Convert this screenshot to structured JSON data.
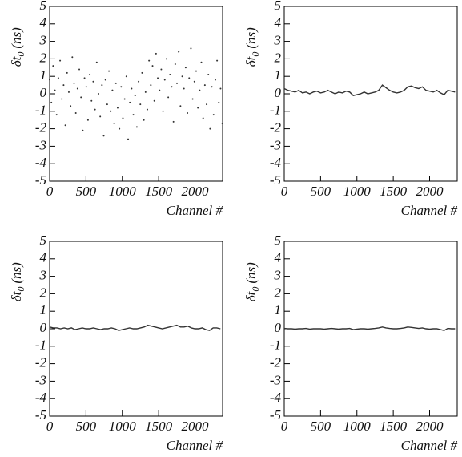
{
  "chart_data": [
    {
      "type": "scatter",
      "xlabel": "Channel #",
      "ylabel": {
        "symbol": "δt",
        "subscript": "0",
        "unit": "(ns)"
      },
      "xlim": [
        0,
        2380
      ],
      "ylim": [
        -5,
        5
      ],
      "xticks": [
        0,
        500,
        1000,
        1500,
        2000
      ],
      "yticks": [
        -5,
        -4,
        -3,
        -2,
        -1,
        0,
        1,
        2,
        3,
        4,
        5
      ],
      "color": "#333333",
      "x": [
        0,
        24,
        48,
        72,
        96,
        120,
        144,
        168,
        192,
        216,
        240,
        264,
        288,
        312,
        336,
        360,
        384,
        408,
        432,
        456,
        480,
        504,
        528,
        552,
        576,
        600,
        624,
        648,
        672,
        696,
        720,
        744,
        768,
        792,
        816,
        840,
        864,
        888,
        912,
        936,
        960,
        984,
        1008,
        1032,
        1056,
        1080,
        1104,
        1128,
        1152,
        1176,
        1200,
        1224,
        1248,
        1272,
        1296,
        1320,
        1344,
        1368,
        1392,
        1416,
        1440,
        1464,
        1488,
        1512,
        1536,
        1560,
        1584,
        1608,
        1632,
        1656,
        1680,
        1704,
        1728,
        1752,
        1776,
        1800,
        1824,
        1848,
        1872,
        1896,
        1920,
        1944,
        1968,
        1992,
        2016,
        2040,
        2064,
        2088,
        2112,
        2136,
        2160,
        2184,
        2208,
        2232,
        2256,
        2280,
        2304,
        2328,
        2352,
        2376
      ],
      "values": [
        0.8,
        -0.5,
        1.6,
        0.2,
        -1.2,
        0.9,
        1.9,
        -0.3,
        0.5,
        -1.8,
        1.2,
        0.1,
        -0.7,
        2.1,
        0.6,
        -1.1,
        0.3,
        1.4,
        -0.2,
        -2.1,
        0.9,
        0.4,
        -1.5,
        1.1,
        -0.4,
        0.7,
        -0.9,
        1.8,
        0.0,
        -1.3,
        0.5,
        -2.4,
        0.8,
        -0.6,
        1.3,
        -1.0,
        0.2,
        -1.7,
        0.6,
        -0.8,
        -2.0,
        0.4,
        -1.4,
        -0.3,
        1.0,
        -2.6,
        -0.5,
        0.3,
        -1.2,
        -0.1,
        -1.9,
        0.7,
        -0.6,
        1.2,
        -1.5,
        0.1,
        -0.9,
        1.9,
        0.5,
        1.6,
        -0.4,
        2.3,
        0.9,
        0.2,
        1.4,
        -1.0,
        0.8,
        2.0,
        -0.2,
        1.1,
        0.4,
        -1.6,
        1.7,
        0.6,
        2.4,
        -0.7,
        1.0,
        0.3,
        1.5,
        -1.1,
        0.9,
        2.6,
        -0.3,
        0.7,
        1.3,
        -0.8,
        0.2,
        1.8,
        -1.4,
        0.5,
        -0.6,
        1.1,
        -2.0,
        0.4,
        -1.2,
        0.8,
        1.9,
        -0.5,
        0.3,
        -1.7
      ]
    },
    {
      "type": "line",
      "xlabel": "Channel #",
      "ylabel": {
        "symbol": "δt",
        "subscript": "0",
        "unit": "(ns)"
      },
      "xlim": [
        0,
        2380
      ],
      "ylim": [
        -5,
        5
      ],
      "xticks": [
        0,
        500,
        1000,
        1500,
        2000
      ],
      "yticks": [
        -5,
        -4,
        -3,
        -2,
        -1,
        0,
        1,
        2,
        3,
        4,
        5
      ],
      "color": "#333333",
      "x": [
        0,
        50,
        100,
        150,
        200,
        250,
        300,
        350,
        400,
        450,
        500,
        550,
        600,
        650,
        700,
        750,
        800,
        850,
        900,
        950,
        1000,
        1050,
        1100,
        1150,
        1200,
        1250,
        1300,
        1350,
        1400,
        1450,
        1500,
        1550,
        1600,
        1650,
        1700,
        1750,
        1800,
        1850,
        1900,
        1950,
        2000,
        2050,
        2100,
        2150,
        2200,
        2250,
        2300,
        2350
      ],
      "values": [
        0.3,
        0.2,
        0.15,
        0.1,
        0.2,
        0.05,
        0.1,
        0.0,
        0.1,
        0.15,
        0.05,
        0.1,
        0.2,
        0.1,
        0.0,
        0.1,
        0.05,
        0.15,
        0.1,
        -0.1,
        -0.05,
        0.0,
        0.1,
        0.0,
        0.05,
        0.1,
        0.2,
        0.5,
        0.35,
        0.2,
        0.1,
        0.05,
        0.1,
        0.2,
        0.4,
        0.45,
        0.35,
        0.3,
        0.4,
        0.2,
        0.15,
        0.1,
        0.2,
        0.05,
        -0.05,
        0.2,
        0.15,
        0.1
      ]
    },
    {
      "type": "line",
      "xlabel": "Channel #",
      "ylabel": {
        "symbol": "δt",
        "subscript": "0",
        "unit": "(ns)"
      },
      "xlim": [
        0,
        2380
      ],
      "ylim": [
        -5,
        5
      ],
      "xticks": [
        0,
        500,
        1000,
        1500,
        2000
      ],
      "yticks": [
        -5,
        -4,
        -3,
        -2,
        -1,
        0,
        1,
        2,
        3,
        4,
        5
      ],
      "color": "#333333",
      "x": [
        0,
        50,
        100,
        150,
        200,
        250,
        300,
        350,
        400,
        450,
        500,
        550,
        600,
        650,
        700,
        750,
        800,
        850,
        900,
        950,
        1000,
        1050,
        1100,
        1150,
        1200,
        1250,
        1300,
        1350,
        1400,
        1450,
        1500,
        1550,
        1600,
        1650,
        1700,
        1750,
        1800,
        1850,
        1900,
        1950,
        2000,
        2050,
        2100,
        2150,
        2200,
        2250,
        2300,
        2350
      ],
      "values": [
        0.1,
        0.05,
        0.05,
        0.0,
        0.05,
        0.0,
        0.05,
        -0.05,
        0.0,
        0.05,
        0.0,
        0.0,
        0.05,
        0.0,
        -0.05,
        0.0,
        0.0,
        0.05,
        0.0,
        -0.1,
        -0.05,
        0.0,
        0.05,
        0.0,
        0.0,
        0.05,
        0.1,
        0.2,
        0.15,
        0.1,
        0.05,
        0.0,
        0.05,
        0.1,
        0.15,
        0.2,
        0.1,
        0.1,
        0.15,
        0.05,
        0.0,
        0.0,
        0.05,
        -0.05,
        -0.1,
        0.05,
        0.05,
        0.0
      ]
    },
    {
      "type": "line",
      "xlabel": "Channel #",
      "ylabel": {
        "symbol": "δt",
        "subscript": "0",
        "unit": "(ns)"
      },
      "xlim": [
        0,
        2380
      ],
      "ylim": [
        -5,
        5
      ],
      "xticks": [
        0,
        500,
        1000,
        1500,
        2000
      ],
      "yticks": [
        -5,
        -4,
        -3,
        -2,
        -1,
        0,
        1,
        2,
        3,
        4,
        5
      ],
      "color": "#333333",
      "x": [
        0,
        50,
        100,
        150,
        200,
        250,
        300,
        350,
        400,
        450,
        500,
        550,
        600,
        650,
        700,
        750,
        800,
        850,
        900,
        950,
        1000,
        1050,
        1100,
        1150,
        1200,
        1250,
        1300,
        1350,
        1400,
        1450,
        1500,
        1550,
        1600,
        1650,
        1700,
        1750,
        1800,
        1850,
        1900,
        1950,
        2000,
        2050,
        2100,
        2150,
        2200,
        2250,
        2300,
        2350
      ],
      "values": [
        0.02,
        0.0,
        0.0,
        -0.02,
        0.0,
        0.0,
        0.02,
        -0.02,
        0.0,
        0.0,
        0.0,
        -0.02,
        0.0,
        0.02,
        0.0,
        -0.02,
        0.0,
        0.0,
        0.02,
        -0.05,
        -0.02,
        0.0,
        0.0,
        -0.02,
        0.0,
        0.02,
        0.05,
        0.1,
        0.05,
        0.02,
        0.0,
        0.0,
        0.02,
        0.05,
        0.1,
        0.08,
        0.05,
        0.02,
        0.05,
        0.0,
        -0.02,
        0.0,
        0.0,
        -0.05,
        -0.1,
        0.02,
        0.0,
        0.0
      ]
    }
  ]
}
